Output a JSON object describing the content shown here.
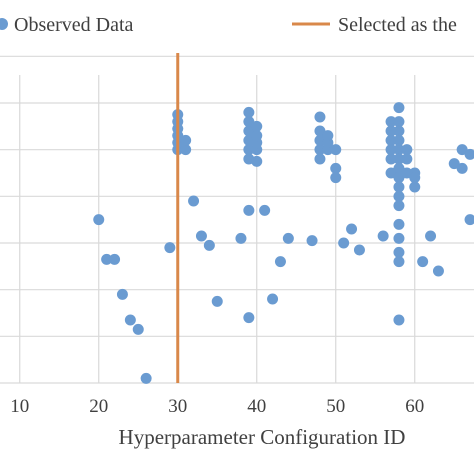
{
  "chart_data": {
    "type": "scatter",
    "xlabel": "Hyperparameter Configuration ID",
    "xlim": [
      7.5,
      67.5
    ],
    "ylim": [
      0,
      7.5
    ],
    "x_ticks": [
      10,
      20,
      30,
      40,
      50,
      60
    ],
    "y_grid": [
      0,
      1,
      2,
      3,
      4,
      5,
      6,
      7
    ],
    "grid": "horizontal",
    "legend_position": "top",
    "series": [
      {
        "name": "Observed Data",
        "color": "#6a9bd1",
        "points": [
          [
            20,
            3.5
          ],
          [
            21,
            2.65
          ],
          [
            22,
            2.65
          ],
          [
            23,
            1.9
          ],
          [
            24,
            1.35
          ],
          [
            25,
            1.15
          ],
          [
            26,
            0.1
          ],
          [
            29,
            2.9
          ],
          [
            32,
            3.9
          ],
          [
            33,
            3.15
          ],
          [
            34,
            2.95
          ],
          [
            35,
            1.75
          ],
          [
            38,
            3.1
          ],
          [
            39,
            1.4
          ],
          [
            39,
            3.7
          ],
          [
            41,
            3.7
          ],
          [
            42,
            1.8
          ],
          [
            43,
            2.6
          ],
          [
            44,
            3.1
          ],
          [
            47,
            3.05
          ],
          [
            50,
            4.4
          ],
          [
            51,
            3.0
          ],
          [
            52,
            3.3
          ],
          [
            53,
            2.85
          ],
          [
            56,
            3.15
          ],
          [
            58,
            1.35
          ],
          [
            60,
            4.5
          ],
          [
            61,
            2.6
          ],
          [
            62,
            3.15
          ],
          [
            63,
            2.4
          ],
          [
            30,
            5.0
          ],
          [
            30,
            5.15
          ],
          [
            30,
            5.3
          ],
          [
            30,
            5.45
          ],
          [
            30,
            5.6
          ],
          [
            30,
            5.75
          ],
          [
            31,
            5.0
          ],
          [
            31,
            5.2
          ],
          [
            39,
            4.8
          ],
          [
            39,
            5.0
          ],
          [
            39,
            5.2
          ],
          [
            39,
            5.4
          ],
          [
            39,
            5.6
          ],
          [
            39,
            5.8
          ],
          [
            40,
            4.75
          ],
          [
            40,
            5.0
          ],
          [
            40,
            5.15
          ],
          [
            40,
            5.3
          ],
          [
            40,
            5.5
          ],
          [
            48,
            4.8
          ],
          [
            48,
            5.0
          ],
          [
            48,
            5.2
          ],
          [
            48,
            5.4
          ],
          [
            48,
            5.7
          ],
          [
            49,
            5.0
          ],
          [
            49,
            5.15
          ],
          [
            49,
            5.3
          ],
          [
            50,
            5.0
          ],
          [
            50,
            4.6
          ],
          [
            57,
            5.6
          ],
          [
            57,
            5.4
          ],
          [
            57,
            5.2
          ],
          [
            57,
            5.0
          ],
          [
            57,
            4.8
          ],
          [
            57,
            4.5
          ],
          [
            58,
            5.9
          ],
          [
            58,
            5.6
          ],
          [
            58,
            5.4
          ],
          [
            58,
            5.2
          ],
          [
            58,
            5.0
          ],
          [
            58,
            4.8
          ],
          [
            58,
            4.6
          ],
          [
            58,
            4.4
          ],
          [
            58,
            4.2
          ],
          [
            58,
            4.0
          ],
          [
            58,
            3.8
          ],
          [
            58,
            3.4
          ],
          [
            58,
            3.1
          ],
          [
            58,
            2.8
          ],
          [
            58,
            2.6
          ],
          [
            59,
            5.0
          ],
          [
            59,
            4.8
          ],
          [
            59,
            4.5
          ],
          [
            60,
            4.2
          ],
          [
            60,
            4.4
          ],
          [
            65,
            4.7
          ],
          [
            66,
            4.6
          ],
          [
            66,
            5.0
          ],
          [
            67,
            4.9
          ],
          [
            67,
            3.5
          ]
        ]
      },
      {
        "name": "Selected as the",
        "color": "#d9884a",
        "type": "vertical-line",
        "x": 30
      }
    ]
  }
}
